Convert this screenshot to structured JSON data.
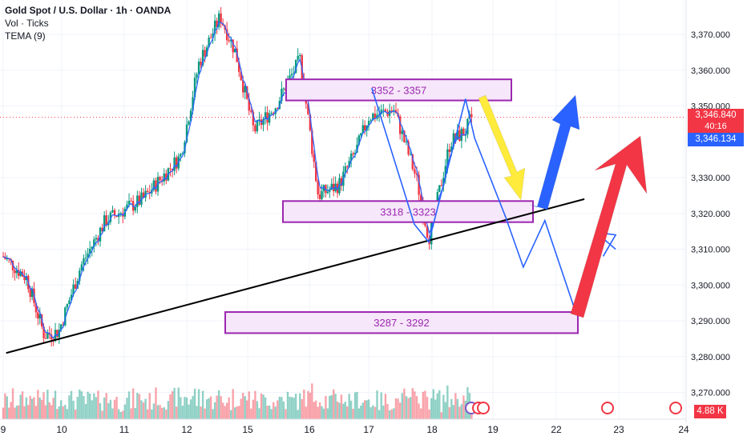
{
  "header": {
    "title": "Gold Spot / U.S. Dollar · 1h · OANDA",
    "volume_label": "Vol · Ticks",
    "indicator_label": "TEMA (9)"
  },
  "price_tags": {
    "last_price": "3,346.840",
    "countdown": "40:16",
    "tema_value": "3,346.134",
    "volume_value": "4.88 K"
  },
  "colors": {
    "up": "#089981",
    "down": "#f23645",
    "tema": "#2962ff",
    "zone_border": "#9c27b0",
    "zone_fill": "#f6e7fa",
    "zone_text": "#9c27b0",
    "trendline": "#000000",
    "projection": "#2962ff",
    "arrow_yellow": "#ffeb3b",
    "arrow_blue": "#2962ff",
    "arrow_red": "#f23645"
  },
  "chart_data": {
    "type": "candlestick",
    "title": "Gold Spot / U.S. Dollar · 1h · OANDA",
    "ylabel": "",
    "ylim": [
      3265,
      3378
    ],
    "x_ticks": [
      "9",
      "10",
      "11",
      "12",
      "15",
      "16",
      "17",
      "18",
      "19",
      "22",
      "23",
      "24"
    ],
    "y_ticks": [
      "3,370.000",
      "3,360.000",
      "3,350.000",
      "3,330.000",
      "3,320.000",
      "3,310.000",
      "3,300.000",
      "3,290.000",
      "3,280.000",
      "3,270.000"
    ],
    "y_tick_values": [
      3370,
      3360,
      3350,
      3330,
      3320,
      3310,
      3300,
      3290,
      3280,
      3270
    ],
    "price_path": [
      {
        "day": "9",
        "t": 0.0,
        "price": 3308
      },
      {
        "day": "9",
        "t": 0.4,
        "price": 3302
      },
      {
        "day": "10",
        "t": 0.7,
        "price": 3286
      },
      {
        "day": "10",
        "t": 0.95,
        "price": 3287
      },
      {
        "day": "10",
        "t": 1.3,
        "price": 3305
      },
      {
        "day": "11",
        "t": 1.7,
        "price": 3318
      },
      {
        "day": "11",
        "t": 2.3,
        "price": 3324
      },
      {
        "day": "12",
        "t": 2.9,
        "price": 3336
      },
      {
        "day": "12",
        "t": 3.2,
        "price": 3362
      },
      {
        "day": "12",
        "t": 3.55,
        "price": 3375
      },
      {
        "day": "15",
        "t": 3.8,
        "price": 3365
      },
      {
        "day": "15",
        "t": 4.1,
        "price": 3343
      },
      {
        "day": "15",
        "t": 4.45,
        "price": 3350
      },
      {
        "day": "15",
        "t": 4.85,
        "price": 3363
      },
      {
        "day": "16",
        "t": 5.15,
        "price": 3325
      },
      {
        "day": "16",
        "t": 5.5,
        "price": 3328
      },
      {
        "day": "16",
        "t": 5.8,
        "price": 3338
      },
      {
        "day": "17",
        "t": 6.0,
        "price": 3347
      },
      {
        "day": "17",
        "t": 6.4,
        "price": 3349
      },
      {
        "day": "17",
        "t": 6.75,
        "price": 3330
      },
      {
        "day": "18",
        "t": 6.95,
        "price": 3313
      },
      {
        "day": "18",
        "t": 7.3,
        "price": 3340
      },
      {
        "day": "18",
        "t": 7.55,
        "price": 3343
      },
      {
        "day": "18",
        "t": 7.65,
        "price": 3346.84
      }
    ],
    "zones": [
      {
        "label": "3352 - 3357",
        "low": 3352,
        "high": 3357
      },
      {
        "label": "3318 - 3323",
        "low": 3318,
        "high": 3323
      },
      {
        "label": "3287 - 3292",
        "low": 3287,
        "high": 3292
      }
    ],
    "last_price": 3346.84,
    "tema_last": 3346.134,
    "volume_unit": "K",
    "volume_last": 4.88
  }
}
